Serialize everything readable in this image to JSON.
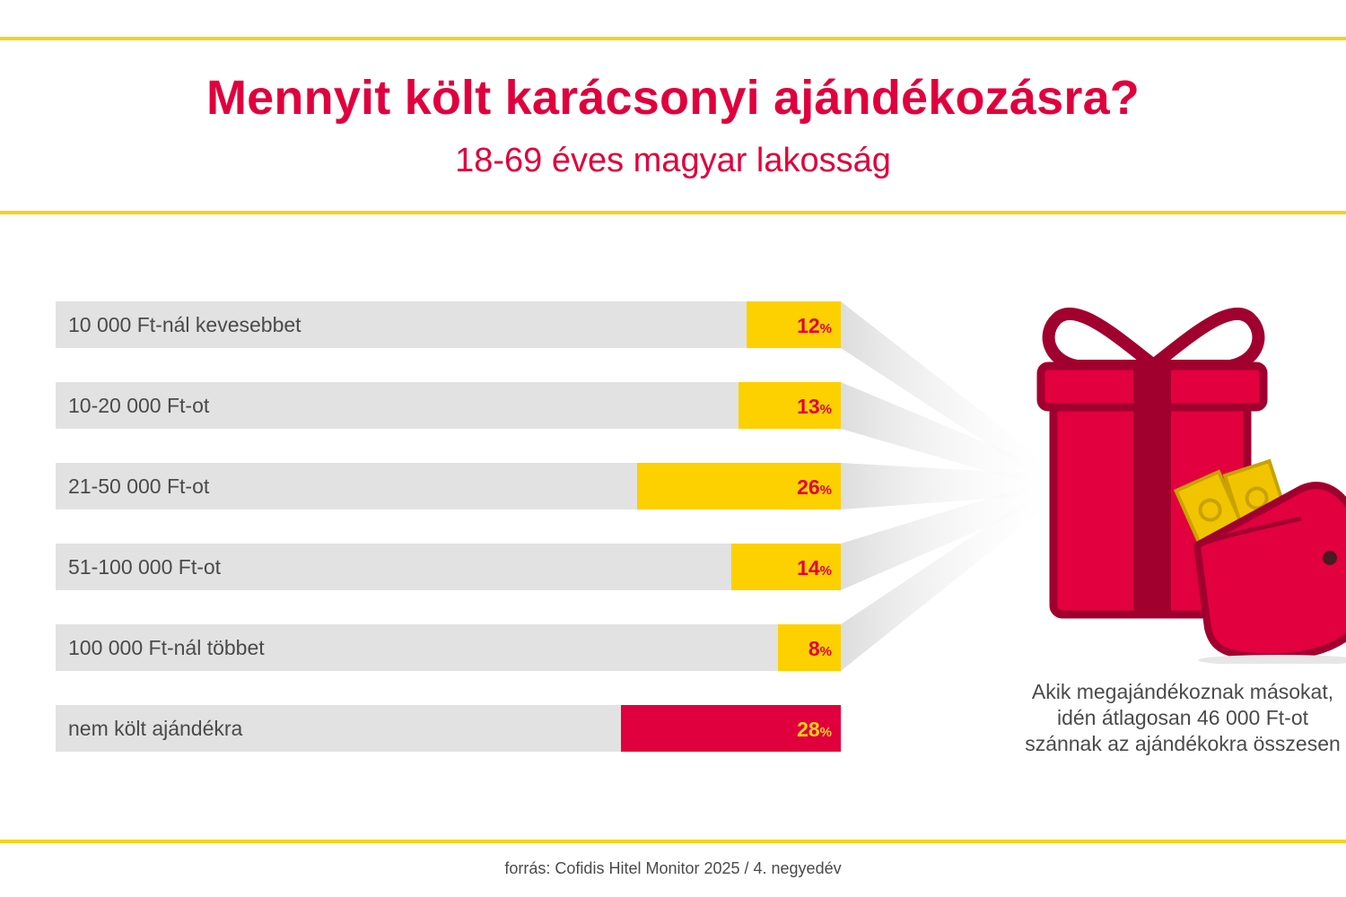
{
  "title": "Mennyit költ karácsonyi ajándékozásra?",
  "subtitle": "18-69 éves magyar lakosság",
  "chart_data": {
    "type": "bar",
    "orientation": "horizontal",
    "categories": [
      "10 000 Ft-nál kevesebbet",
      "10-20 000 Ft-ot",
      "21-50 000 Ft-ot",
      "51-100 000 Ft-ot",
      "100 000 Ft-nál többet",
      "nem költ ajándékra"
    ],
    "values": [
      12,
      13,
      26,
      14,
      8,
      28
    ],
    "value_unit": "%",
    "xlim": [
      0,
      100
    ],
    "grid": false,
    "bar_colors": [
      "#fdd000",
      "#fdd000",
      "#fdd000",
      "#fdd000",
      "#fdd000",
      "#e0003d"
    ],
    "value_label_colors": [
      "#e0003d",
      "#e0003d",
      "#e0003d",
      "#e0003d",
      "#e0003d",
      "#f5d21a"
    ],
    "track_color": "#e2e2e2"
  },
  "note": {
    "lines": [
      "Akik megajándékoznak másokat,",
      "idén átlagosan 46 000 Ft-ot",
      "szánnak az ajándékokra összesen"
    ]
  },
  "source": "forrás: Cofidis Hitel Monitor 2025 / 4. negyedév",
  "colors": {
    "accent_red": "#e0003d",
    "accent_yellow": "#fdd000",
    "divider_yellow": "#f5d21a",
    "gift_red": "#e2003f",
    "gift_dark": "#a1002f"
  },
  "icons": [
    "gift-box-icon",
    "wallet-icon",
    "banknote-icon"
  ]
}
